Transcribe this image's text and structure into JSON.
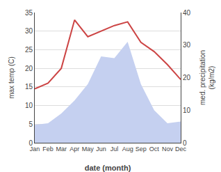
{
  "chart_data": {
    "type": "line",
    "categories": [
      "Jan",
      "Feb",
      "Mar",
      "Apr",
      "May",
      "Jun",
      "Jul",
      "Aug",
      "Sep",
      "Oct",
      "Nov",
      "Dec"
    ],
    "series": [
      {
        "type": "area",
        "axis": "y2",
        "color": "#c5d0f0",
        "values": [
          5.5,
          6.0,
          9.0,
          13.0,
          18.0,
          26.5,
          26.0,
          31.0,
          18.0,
          10.0,
          6.0,
          6.5
        ]
      },
      {
        "type": "line",
        "color": "#cc4444",
        "values": [
          14.5,
          16.0,
          20.0,
          33.0,
          28.5,
          30.0,
          31.5,
          32.5,
          27.0,
          24.5,
          21.0,
          17.0
        ]
      }
    ],
    "xlabel": "date (month)",
    "ylabel": "max temp (C)",
    "y2label": "med. precipitation\n(kg/m2)",
    "ylim": [
      0,
      35
    ],
    "yticks": [
      0,
      5,
      10,
      15,
      20,
      25,
      30,
      35
    ],
    "y2lim": [
      0,
      40
    ],
    "y2ticks": [
      0,
      10,
      20,
      30,
      40
    ],
    "grid": true
  }
}
